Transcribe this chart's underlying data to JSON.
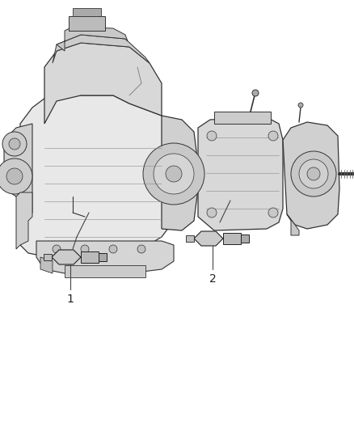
{
  "background_color": "#ffffff",
  "label1": "1",
  "label2": "2",
  "text_color": "#222222",
  "line_color": "#444444",
  "figsize": [
    4.38,
    5.33
  ],
  "dpi": 100,
  "engine_fill": "#e8e8e8",
  "engine_edge": "#333333",
  "trans_fill": "#e0e0e0",
  "detail_color": "#555555",
  "sensor_fill": "#cccccc",
  "sensor_edge": "#222222"
}
